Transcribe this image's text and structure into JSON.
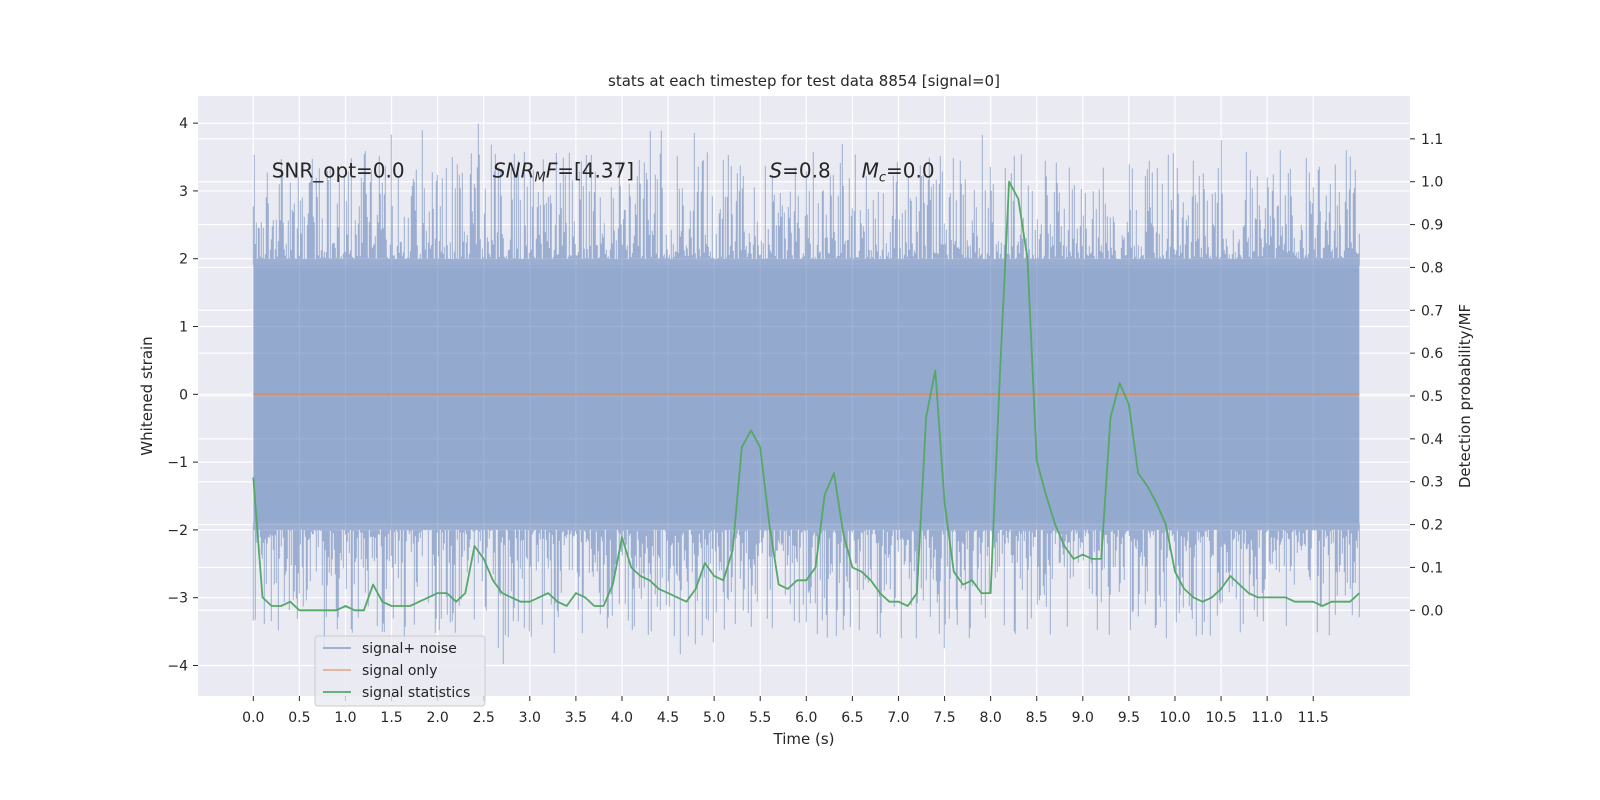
{
  "chart_data": {
    "type": "line",
    "title": "stats at each timestep for test data 8854 [signal=0]",
    "xlabel": "Time (s)",
    "ylabel": "Whitened strain",
    "ylabel_right": "Detection probability/MF",
    "xlim": [
      -0.6,
      12.55
    ],
    "ylim": [
      -4.45,
      4.4
    ],
    "ylim_right": [
      -0.2,
      1.2
    ],
    "grid": true,
    "legend_position": "lower-left",
    "x_ticks": [
      0.0,
      0.5,
      1.0,
      1.5,
      2.0,
      2.5,
      3.0,
      3.5,
      4.0,
      4.5,
      5.0,
      5.5,
      6.0,
      6.5,
      7.0,
      7.5,
      8.0,
      8.5,
      9.0,
      9.5,
      10.0,
      10.5,
      11.0,
      11.5
    ],
    "x_tick_labels": [
      "0.0",
      "0.5",
      "1.0",
      "1.5",
      "2.0",
      "2.5",
      "3.0",
      "3.5",
      "4.0",
      "4.5",
      "5.0",
      "5.5",
      "6.0",
      "6.5",
      "7.0",
      "7.5",
      "8.0",
      "8.5",
      "9.0",
      "9.5",
      "10.0",
      "10.5",
      "11.0",
      "11.5"
    ],
    "y_ticks": [
      4,
      3,
      2,
      1,
      0,
      -1,
      -2,
      -3,
      -4
    ],
    "y_tick_labels": [
      "4",
      "3",
      "2",
      "1",
      "0",
      "−1",
      "−2",
      "−3",
      "−4"
    ],
    "y_ticks_right": [
      1.1,
      1.0,
      0.9,
      0.8,
      0.7,
      0.6,
      0.5,
      0.4,
      0.3,
      0.2,
      0.1,
      0.0
    ],
    "y_tick_labels_right": [
      "1.1",
      "1.0",
      "0.9",
      "0.8",
      "0.7",
      "0.6",
      "0.5",
      "0.4",
      "0.3",
      "0.2",
      "0.1",
      "0.0"
    ],
    "annotations": [
      {
        "x": 0.2,
        "y": 3.2,
        "parts": [
          {
            "t": "SNR_opt=0.0",
            "style": "normal"
          }
        ]
      },
      {
        "x": 2.6,
        "y": 3.2,
        "parts": [
          {
            "t": "SNR",
            "style": "italic"
          },
          {
            "t": "M",
            "style": "italic-sub"
          },
          {
            "t": "F",
            "style": "italic"
          },
          {
            "t": "=[4.37]",
            "style": "normal"
          }
        ]
      },
      {
        "x": 5.6,
        "y": 3.2,
        "parts": [
          {
            "t": "S",
            "style": "italic"
          },
          {
            "t": "=0.8",
            "style": "normal"
          }
        ]
      },
      {
        "x": 6.6,
        "y": 3.2,
        "parts": [
          {
            "t": "M",
            "style": "italic"
          },
          {
            "t": "c",
            "style": "italic-sub"
          },
          {
            "t": "=0.0",
            "style": "normal"
          }
        ]
      }
    ],
    "series": [
      {
        "name": "signal+ noise",
        "color": "#4c72b0",
        "kind": "noise",
        "x_range": [
          0.0,
          12.0
        ],
        "core_band": [
          -1.9,
          1.9
        ],
        "extreme_min": -4.05,
        "extreme_max": 4.02
      },
      {
        "name": "signal only",
        "color": "#dd8452",
        "x": [
          0.0,
          12.0
        ],
        "values": [
          0.0,
          0.0
        ]
      },
      {
        "name": "signal statistics",
        "color": "#55a868",
        "axis": "right",
        "x": [
          0.0,
          0.1,
          0.2,
          0.3,
          0.4,
          0.5,
          0.6,
          0.7,
          0.8,
          0.9,
          1.0,
          1.1,
          1.2,
          1.3,
          1.4,
          1.5,
          1.6,
          1.7,
          1.8,
          1.9,
          2.0,
          2.1,
          2.2,
          2.3,
          2.4,
          2.5,
          2.6,
          2.7,
          2.8,
          2.9,
          3.0,
          3.1,
          3.2,
          3.3,
          3.4,
          3.5,
          3.6,
          3.7,
          3.8,
          3.9,
          4.0,
          4.1,
          4.2,
          4.3,
          4.4,
          4.5,
          4.6,
          4.7,
          4.8,
          4.9,
          5.0,
          5.1,
          5.2,
          5.3,
          5.4,
          5.5,
          5.6,
          5.7,
          5.8,
          5.9,
          6.0,
          6.1,
          6.2,
          6.3,
          6.4,
          6.5,
          6.6,
          6.7,
          6.8,
          6.9,
          7.0,
          7.1,
          7.2,
          7.3,
          7.4,
          7.5,
          7.6,
          7.7,
          7.8,
          7.9,
          8.0,
          8.1,
          8.2,
          8.3,
          8.4,
          8.5,
          8.6,
          8.7,
          8.8,
          8.9,
          9.0,
          9.1,
          9.2,
          9.3,
          9.4,
          9.5,
          9.6,
          9.7,
          9.8,
          9.9,
          10.0,
          10.1,
          10.2,
          10.3,
          10.4,
          10.5,
          10.6,
          10.7,
          10.8,
          10.9,
          11.0,
          11.1,
          11.2,
          11.3,
          11.4,
          11.5,
          11.6,
          11.7,
          11.8,
          11.9,
          12.0
        ],
        "values": [
          0.31,
          0.03,
          0.01,
          0.01,
          0.02,
          0.0,
          0.0,
          0.0,
          0.0,
          0.0,
          0.01,
          0.0,
          0.0,
          0.06,
          0.02,
          0.01,
          0.01,
          0.01,
          0.02,
          0.03,
          0.04,
          0.04,
          0.02,
          0.04,
          0.15,
          0.12,
          0.07,
          0.04,
          0.03,
          0.02,
          0.02,
          0.03,
          0.04,
          0.02,
          0.01,
          0.04,
          0.03,
          0.01,
          0.01,
          0.06,
          0.17,
          0.1,
          0.08,
          0.07,
          0.05,
          0.04,
          0.03,
          0.02,
          0.05,
          0.11,
          0.08,
          0.07,
          0.14,
          0.38,
          0.42,
          0.38,
          0.2,
          0.06,
          0.05,
          0.07,
          0.07,
          0.1,
          0.27,
          0.32,
          0.18,
          0.1,
          0.09,
          0.07,
          0.04,
          0.02,
          0.02,
          0.01,
          0.04,
          0.45,
          0.56,
          0.25,
          0.09,
          0.06,
          0.07,
          0.04,
          0.04,
          0.55,
          1.0,
          0.96,
          0.82,
          0.35,
          0.27,
          0.2,
          0.15,
          0.12,
          0.13,
          0.12,
          0.12,
          0.45,
          0.53,
          0.48,
          0.32,
          0.29,
          0.25,
          0.2,
          0.09,
          0.05,
          0.03,
          0.02,
          0.03,
          0.05,
          0.08,
          0.06,
          0.04,
          0.03,
          0.03,
          0.03,
          0.03,
          0.02,
          0.02,
          0.02,
          0.01,
          0.02,
          0.02,
          0.02,
          0.04
        ]
      }
    ]
  }
}
